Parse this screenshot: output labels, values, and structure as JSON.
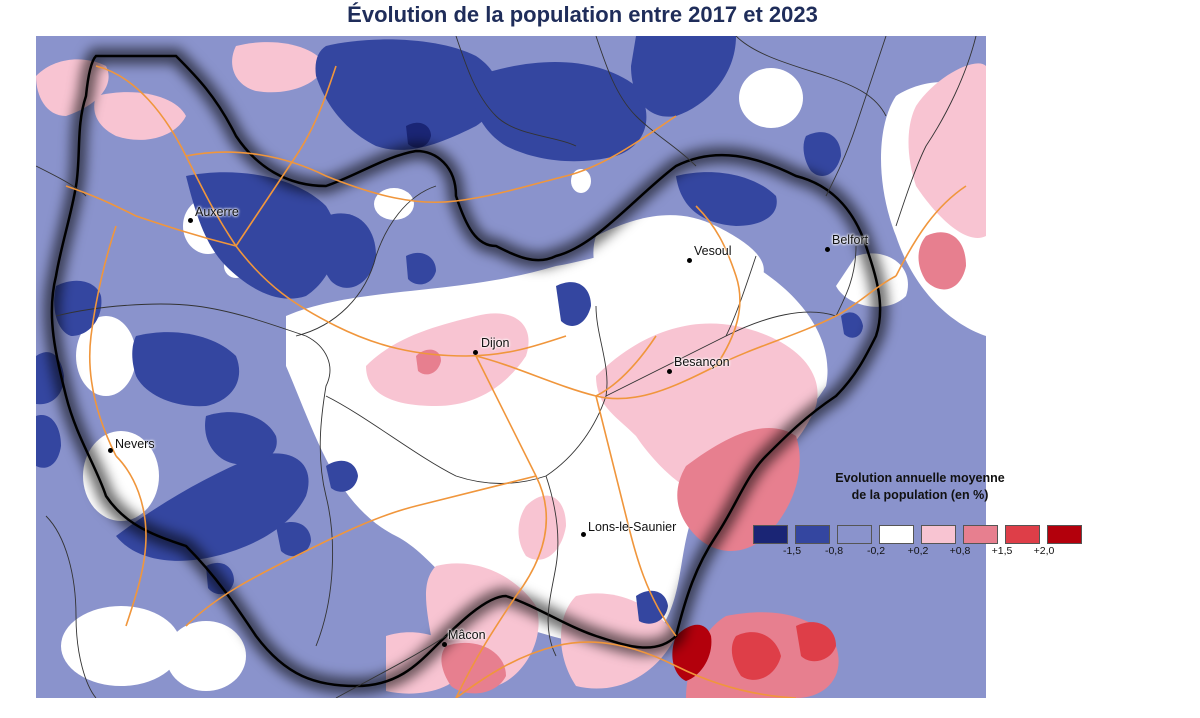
{
  "title": "Évolution de la population entre 2017 et 2023",
  "cities": [
    {
      "name": "Auxerre"
    },
    {
      "name": "Dijon"
    },
    {
      "name": "Vesoul"
    },
    {
      "name": "Belfort"
    },
    {
      "name": "Besançon"
    },
    {
      "name": "Nevers"
    },
    {
      "name": "Lons-le-Saunier"
    },
    {
      "name": "Mâcon"
    }
  ],
  "legend": {
    "title_line1": "Evolution annuelle moyenne",
    "title_line2": "de la population (en %)",
    "classes": [
      {
        "color": "#1a2575",
        "label": ""
      },
      {
        "color": "#3446a0",
        "label": ""
      },
      {
        "color": "#8a93cc",
        "label": ""
      },
      {
        "color": "#ffffff",
        "label": ""
      },
      {
        "color": "#f8c4d2",
        "label": ""
      },
      {
        "color": "#e77f8f",
        "label": ""
      },
      {
        "color": "#de3e48",
        "label": ""
      },
      {
        "color": "#b3000c",
        "label": ""
      }
    ],
    "ticks": [
      "-1,5",
      "-0,8",
      "-0,2",
      "+0,2",
      "+0,8",
      "+1,5",
      "+2,0"
    ]
  }
}
